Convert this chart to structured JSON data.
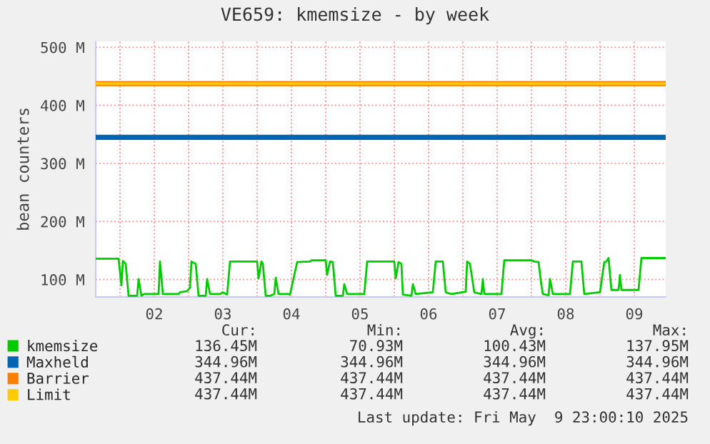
{
  "chart_data": {
    "type": "line",
    "title": "VE659: kmemsize - by week",
    "ylabel": "bean counters",
    "xlim": [
      "2025-05-01T15:30",
      "2025-05-09T23:00"
    ],
    "ylim": [
      70,
      510
    ],
    "xticks": [
      {
        "value": "2025-05-02T00:00",
        "label": null
      },
      {
        "value": "2025-05-02T12:00",
        "label": "02"
      },
      {
        "value": "2025-05-03T00:00",
        "label": null
      },
      {
        "value": "2025-05-03T12:00",
        "label": "03"
      },
      {
        "value": "2025-05-04T00:00",
        "label": null
      },
      {
        "value": "2025-05-04T12:00",
        "label": "04"
      },
      {
        "value": "2025-05-05T00:00",
        "label": null
      },
      {
        "value": "2025-05-05T12:00",
        "label": "05"
      },
      {
        "value": "2025-05-06T00:00",
        "label": null
      },
      {
        "value": "2025-05-06T12:00",
        "label": "06"
      },
      {
        "value": "2025-05-07T00:00",
        "label": null
      },
      {
        "value": "2025-05-07T12:00",
        "label": "07"
      },
      {
        "value": "2025-05-08T00:00",
        "label": null
      },
      {
        "value": "2025-05-08T12:00",
        "label": "08"
      },
      {
        "value": "2025-05-09T00:00",
        "label": null
      },
      {
        "value": "2025-05-09T12:00",
        "label": "09"
      }
    ],
    "yticks": [
      {
        "value": 100,
        "label": "100 M"
      },
      {
        "value": 200,
        "label": "200 M"
      },
      {
        "value": 300,
        "label": "300 M"
      },
      {
        "value": 400,
        "label": "400 M"
      },
      {
        "value": 500,
        "label": "500 M"
      }
    ],
    "grid": true,
    "legend": "bottom",
    "marker": "none",
    "line_style": "solid",
    "series": [
      {
        "name": "kmemsize",
        "color": "#00cc00",
        "x": [
          "2025-05-01T15:30",
          "2025-05-01T23:30",
          "2025-05-02T00:30",
          "2025-05-02T01:00",
          "2025-05-02T02:00",
          "2025-05-02T03:00",
          "2025-05-02T06:00",
          "2025-05-02T06:30",
          "2025-05-02T07:30",
          "2025-05-02T08:30",
          "2025-05-02T13:30",
          "2025-05-02T14:00",
          "2025-05-02T15:00",
          "2025-05-02T20:30",
          "2025-05-02T21:00",
          "2025-05-02T23:30",
          "2025-05-03T00:30",
          "2025-05-03T01:00",
          "2025-05-03T02:30",
          "2025-05-03T03:30",
          "2025-05-03T06:00",
          "2025-05-03T06:30",
          "2025-05-03T07:30",
          "2025-05-03T11:00",
          "2025-05-03T12:00",
          "2025-05-03T13:30",
          "2025-05-03T14:30",
          "2025-05-04T00:00",
          "2025-05-04T00:30",
          "2025-05-04T01:30",
          "2025-05-04T02:00",
          "2025-05-04T03:00",
          "2025-05-04T04:30",
          "2025-05-04T06:00",
          "2025-05-04T06:30",
          "2025-05-04T07:30",
          "2025-05-04T11:00",
          "2025-05-04T11:30",
          "2025-05-04T14:00",
          "2025-05-04T18:30",
          "2025-05-04T19:00",
          "2025-05-05T00:00",
          "2025-05-05T00:30",
          "2025-05-05T01:30",
          "2025-05-05T02:30",
          "2025-05-05T03:30",
          "2025-05-05T06:00",
          "2025-05-05T06:30",
          "2025-05-05T07:30",
          "2025-05-05T13:30",
          "2025-05-05T14:30",
          "2025-05-06T00:00",
          "2025-05-06T00:30",
          "2025-05-06T01:30",
          "2025-05-06T02:30",
          "2025-05-06T03:00",
          "2025-05-06T06:00",
          "2025-05-06T06:30",
          "2025-05-06T07:30",
          "2025-05-06T13:30",
          "2025-05-06T14:30",
          "2025-05-06T17:00",
          "2025-05-06T18:00",
          "2025-05-06T20:00",
          "2025-05-07T01:00",
          "2025-05-07T01:30",
          "2025-05-07T02:30",
          "2025-05-07T04:00",
          "2025-05-07T06:30",
          "2025-05-07T07:00",
          "2025-05-07T07:30",
          "2025-05-07T13:30",
          "2025-05-07T14:30",
          "2025-05-08T00:00",
          "2025-05-08T01:00",
          "2025-05-08T02:30",
          "2025-05-08T03:30",
          "2025-05-08T04:00",
          "2025-05-08T06:00",
          "2025-05-08T06:30",
          "2025-05-08T07:30",
          "2025-05-08T13:30",
          "2025-05-08T14:30",
          "2025-05-08T17:30",
          "2025-05-08T18:30",
          "2025-05-09T00:00",
          "2025-05-09T01:30",
          "2025-05-09T02:00",
          "2025-05-09T03:00",
          "2025-05-09T04:00",
          "2025-05-09T06:30",
          "2025-05-09T07:00",
          "2025-05-09T07:30",
          "2025-05-09T13:30",
          "2025-05-09T14:30",
          "2025-05-09T23:00"
        ],
        "values": [
          136,
          136,
          90,
          132,
          127,
          72,
          72,
          101,
          72,
          75,
          75,
          131,
          75,
          75,
          78,
          80,
          86,
          131,
          127,
          72,
          72,
          101,
          75,
          75,
          78,
          74,
          131,
          131,
          102,
          131,
          127,
          72,
          72,
          75,
          103,
          75,
          75,
          74,
          130,
          131,
          133,
          133,
          108,
          131,
          130,
          72,
          72,
          92,
          75,
          75,
          131,
          131,
          102,
          130,
          127,
          74,
          72,
          92,
          75,
          78,
          131,
          131,
          78,
          75,
          79,
          131,
          127,
          78,
          75,
          101,
          75,
          75,
          133,
          133,
          131,
          130,
          90,
          75,
          73,
          101,
          75,
          75,
          131,
          131,
          75,
          78,
          130,
          130,
          137,
          82,
          82,
          108,
          82,
          82,
          137,
          137
        ]
      },
      {
        "name": "Maxheld",
        "color": "#0066b3",
        "x": [
          "2025-05-01T15:30",
          "2025-05-09T23:00"
        ],
        "values": [
          344.96,
          344.96
        ]
      },
      {
        "name": "Barrier",
        "color": "#ff8000",
        "x": [
          "2025-05-01T15:30",
          "2025-05-09T23:00"
        ],
        "values": [
          437.44,
          437.44
        ]
      },
      {
        "name": "Limit",
        "color": "#ffcc00",
        "x": [
          "2025-05-01T15:30",
          "2025-05-09T23:00"
        ],
        "values": [
          437.44,
          437.44
        ]
      }
    ],
    "annotations": [
      "Cur:",
      "Min:",
      "Avg:",
      "Max:",
      "136.45M",
      "70.93M",
      "100.43M",
      "137.95M",
      "344.96M",
      "344.96M",
      "344.96M",
      "344.96M",
      "437.44M",
      "437.44M",
      "437.44M",
      "437.44M",
      "437.44M",
      "437.44M",
      "437.44M",
      "437.44M",
      "Last update: Fri May  9 23:00:10 2025"
    ]
  }
}
